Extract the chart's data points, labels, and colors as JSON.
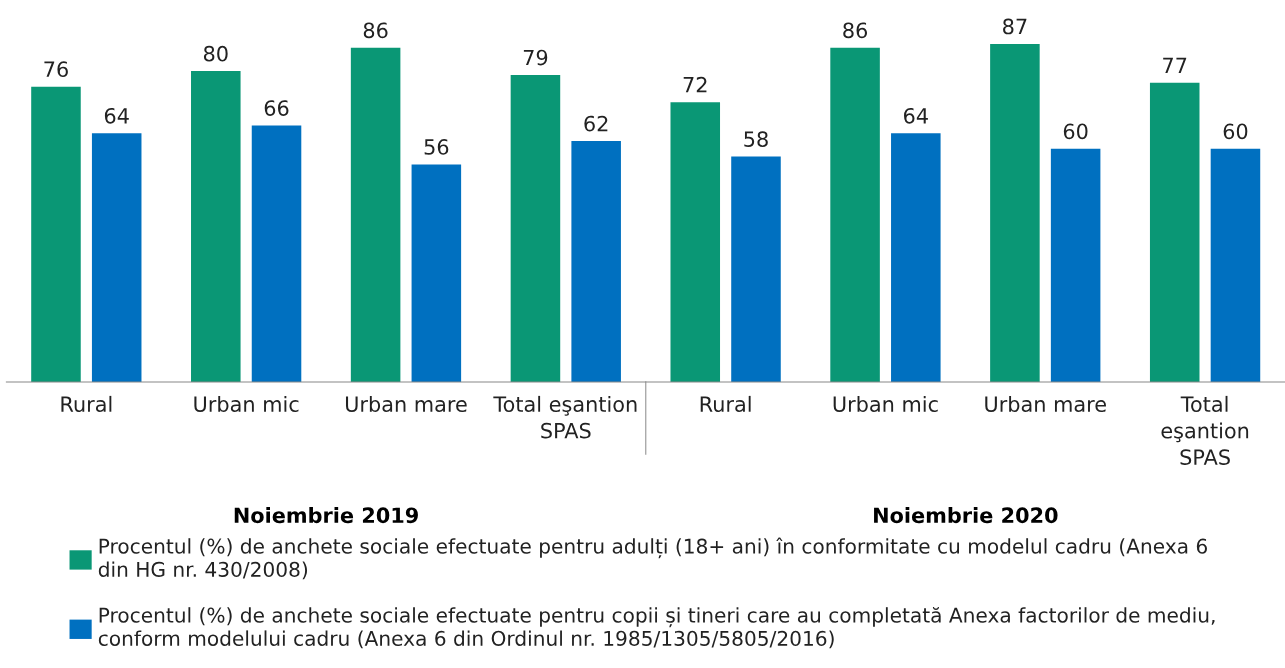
{
  "chart_data": {
    "type": "bar",
    "categories": [
      "Rural",
      "Urban mic",
      "Urban mare",
      "Total eşantion\nSPAS",
      "Rural",
      "Urban mic",
      "Urban mare",
      "Total\neşantion\nSPAS"
    ],
    "series": [
      {
        "name": "Procentul (%) de anchete sociale efectuate pentru adulți (18+ ani) în conformitate cu modelul cadru (Anexa 6\ndin HG nr. 430/2008)",
        "color": "#0a9775",
        "values": [
          76,
          80,
          86,
          79,
          72,
          86,
          87,
          77
        ]
      },
      {
        "name": "Procentul (%) de anchete sociale efectuate pentru copii și tineri care au completată Anexa factorilor de mediu,\nconform modelului cadru (Anexa 6 din Ordinul nr. 1985/1305/5805/2016)",
        "color": "#0070c0",
        "values": [
          64,
          66,
          56,
          62,
          58,
          64,
          60,
          60
        ]
      }
    ],
    "annotations": [
      "Noiembrie 2019",
      "Noiembrie 2020"
    ],
    "data_labels": true,
    "grid": false,
    "legend": "bottom"
  }
}
